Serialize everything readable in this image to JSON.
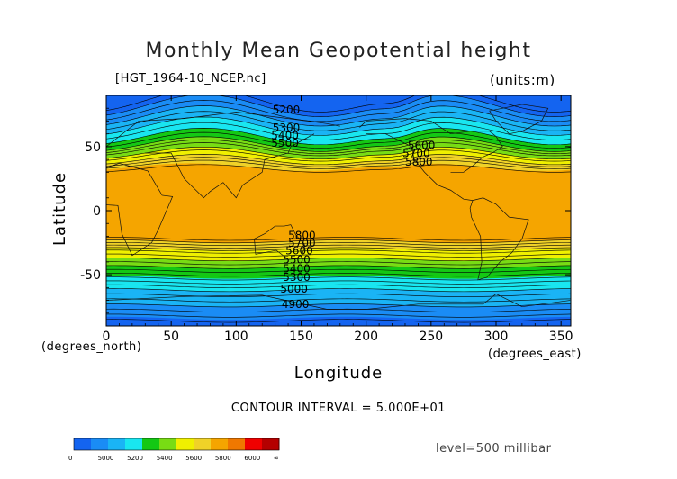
{
  "chart_data": {
    "type": "contour",
    "title": "Monthly Mean Geopotential height",
    "file": "[HGT_1964-10_NCEP.nc]",
    "units_label": "(units:m)",
    "xlabel": "Longitude",
    "xunit": "(degrees_east)",
    "ylabel": "Latitude",
    "yunit": "(degrees_north)",
    "xlim": [
      0,
      357.5
    ],
    "ylim": [
      -90,
      90
    ],
    "x_ticks": [
      "0",
      "50",
      "100",
      "150",
      "200",
      "250",
      "300",
      "350"
    ],
    "y_ticks": [
      "50",
      "0",
      "-50"
    ],
    "contour_interval_text": "CONTOUR INTERVAL = 5.000E+01",
    "level_text": "level=500 millibar",
    "contour_labels": [
      {
        "text": "5200",
        "lon": 128,
        "lat": 76
      },
      {
        "text": "5300",
        "lon": 128,
        "lat": 62
      },
      {
        "text": "5400",
        "lon": 127,
        "lat": 56
      },
      {
        "text": "5500",
        "lon": 127,
        "lat": 50
      },
      {
        "text": "5600",
        "lon": 232,
        "lat": 48
      },
      {
        "text": "5700",
        "lon": 228,
        "lat": 42
      },
      {
        "text": "5800",
        "lon": 230,
        "lat": 35
      },
      {
        "text": "5800",
        "lon": 140,
        "lat": -22
      },
      {
        "text": "5700",
        "lon": 140,
        "lat": -28
      },
      {
        "text": "5600",
        "lon": 138,
        "lat": -34
      },
      {
        "text": "5500",
        "lon": 136,
        "lat": -41
      },
      {
        "text": "5400",
        "lon": 136,
        "lat": -48
      },
      {
        "text": "5300",
        "lon": 136,
        "lat": -55
      },
      {
        "text": "5000",
        "lon": 134,
        "lat": -64
      },
      {
        "text": "4900",
        "lon": 135,
        "lat": -76
      }
    ],
    "colorbar": {
      "labels": [
        "0",
        "5000",
        "5200",
        "5400",
        "5600",
        "5800",
        "6000",
        "∞"
      ],
      "colors": [
        "#1464f0",
        "#1a8cf5",
        "#1ab4f5",
        "#19e6f0",
        "#14c814",
        "#78dc14",
        "#f0f000",
        "#f0d228",
        "#f5a500",
        "#f07800",
        "#f00000",
        "#b40000"
      ]
    },
    "field_colors": {
      "h4900": "#1464f0",
      "h5000": "#1a8cf5",
      "h5200": "#1ab4f5",
      "h5300": "#19e6f0",
      "h5400": "#14c814",
      "h5500": "#78dc14",
      "h5600": "#f0f000",
      "h5700": "#f0d228",
      "h5800": "#f5a500"
    }
  }
}
